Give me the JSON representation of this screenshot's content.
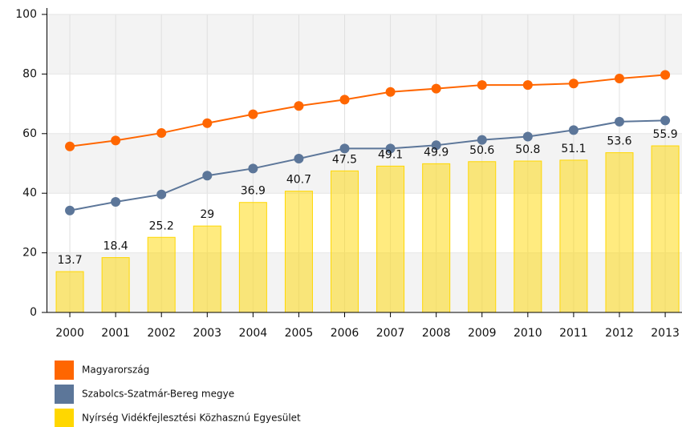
{
  "chart_data": {
    "type": "combo",
    "categories": [
      "2000",
      "2001",
      "2002",
      "2003",
      "2004",
      "2005",
      "2006",
      "2007",
      "2008",
      "2009",
      "2010",
      "2011",
      "2012",
      "2013"
    ],
    "series": [
      {
        "name": "Magyarország",
        "type": "line",
        "color": "#ff6600",
        "values": [
          55.7,
          57.7,
          60.2,
          63.5,
          66.5,
          69.3,
          71.4,
          74,
          75.1,
          76.3,
          76.3,
          76.8,
          78.5,
          79.7
        ]
      },
      {
        "name": "Szabolcs-Szatmár-Bereg megye",
        "type": "line",
        "color": "#5c7699",
        "values": [
          34.2,
          37.1,
          39.6,
          45.9,
          48.3,
          51.6,
          55,
          55,
          56.1,
          57.9,
          59,
          61.2,
          64,
          64.4
        ]
      },
      {
        "name": "Nyírség Vidékfejlesztési Közhasznú Egyesület",
        "type": "bar",
        "color": "#ffd700",
        "values": [
          13.7,
          18.4,
          25.2,
          29,
          36.9,
          40.7,
          47.5,
          49.1,
          49.9,
          50.6,
          50.8,
          51.1,
          53.6,
          55.9
        ]
      }
    ],
    "ylim": [
      0,
      100
    ],
    "yticks": [
      0,
      20,
      40,
      60,
      80,
      100
    ],
    "grid": true,
    "legend": "bottom-left"
  }
}
